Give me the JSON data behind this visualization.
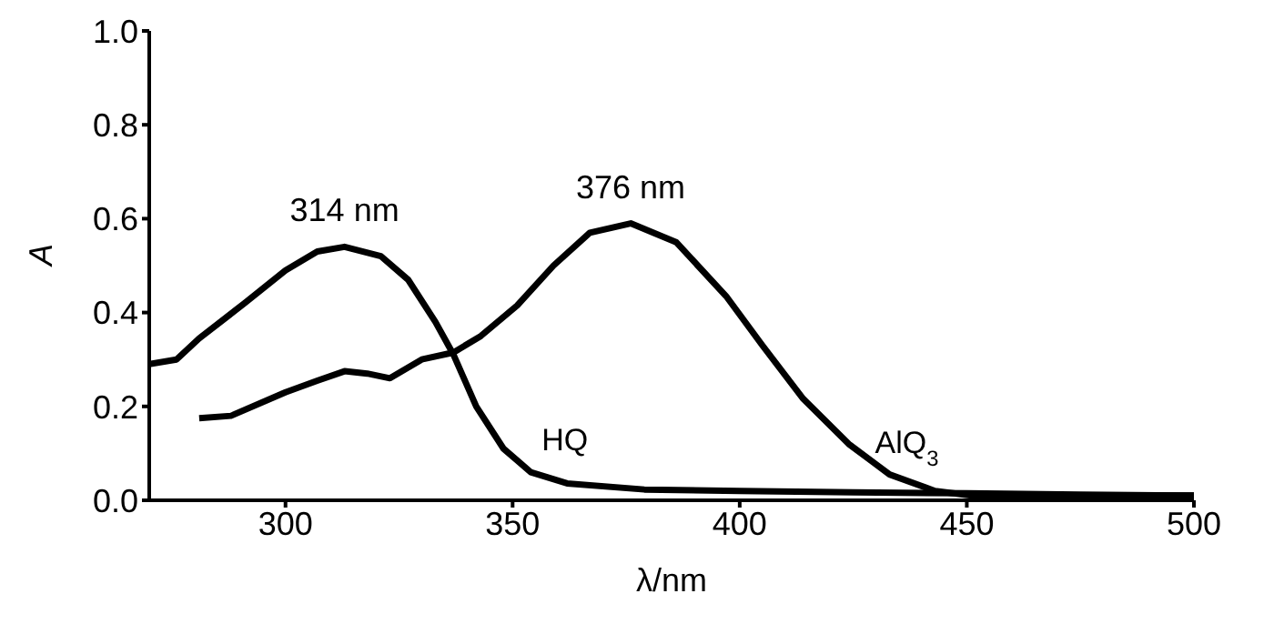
{
  "chart_data": {
    "type": "line",
    "xlabel": "λ/nm",
    "ylabel": "A",
    "xlim": [
      270,
      500
    ],
    "xticks": [
      300,
      350,
      400,
      450,
      500
    ],
    "ylim": [
      0,
      1
    ],
    "yticks": [
      {
        "value": 0,
        "label": "0.0"
      },
      {
        "value": 0.2,
        "label": "0.2"
      },
      {
        "value": 0.4,
        "label": "0.4"
      },
      {
        "value": 0.6,
        "label": "0.6"
      },
      {
        "value": 0.8,
        "label": "0.8"
      },
      {
        "value": 1,
        "label": "1.0"
      }
    ],
    "line_style": "solid",
    "series": [
      {
        "name": "HQ",
        "color": "#000000",
        "x": [
          270,
          276,
          281,
          291,
          300,
          307,
          313,
          321,
          327,
          333,
          337,
          342,
          348,
          354,
          362,
          379,
          400,
          425,
          450,
          475,
          500
        ],
        "values": [
          0.29,
          0.3,
          0.345,
          0.42,
          0.49,
          0.53,
          0.54,
          0.52,
          0.47,
          0.38,
          0.31,
          0.2,
          0.11,
          0.06,
          0.036,
          0.023,
          0.02,
          0.017,
          0.015,
          0.012,
          0.01
        ]
      },
      {
        "name": "AlQ$_{3}$",
        "color": "#000000",
        "x": [
          281,
          288,
          300,
          307,
          313,
          318,
          323,
          330,
          337,
          343,
          351,
          359,
          367,
          376,
          386,
          397,
          405,
          414,
          424,
          433,
          443,
          451,
          475,
          500
        ],
        "values": [
          0.175,
          0.18,
          0.23,
          0.255,
          0.275,
          0.27,
          0.26,
          0.3,
          0.315,
          0.35,
          0.415,
          0.5,
          0.57,
          0.59,
          0.55,
          0.435,
          0.33,
          0.216,
          0.12,
          0.055,
          0.02,
          0.01,
          0.01,
          0.01
        ]
      }
    ],
    "annotations": [
      "314 nm",
      "376 nm"
    ]
  }
}
